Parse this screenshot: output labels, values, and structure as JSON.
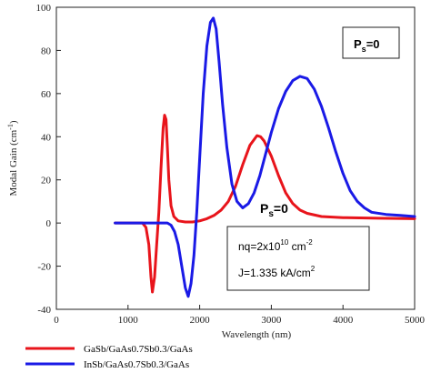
{
  "chart_data": {
    "type": "line",
    "xlabel": "Wavelength  (nm)",
    "ylabel": "Modal Gain  (cm⁻¹)",
    "xlim": [
      0,
      5000
    ],
    "ylim": [
      -40,
      100
    ],
    "x_ticks": [
      0,
      1000,
      2000,
      3000,
      4000,
      5000
    ],
    "y_ticks": [
      -40,
      -20,
      0,
      20,
      40,
      60,
      80,
      100
    ],
    "grid": false,
    "legend_position": "bottom-left",
    "series": [
      {
        "name": "GaSb/GaAs0.7Sb0.3/GaAs",
        "color": "#e8141b",
        "x": [
          820,
          1200,
          1250,
          1290,
          1320,
          1340,
          1370,
          1400,
          1430,
          1460,
          1490,
          1510,
          1530,
          1550,
          1570,
          1600,
          1640,
          1700,
          1800,
          1900,
          2000,
          2100,
          2200,
          2300,
          2400,
          2500,
          2600,
          2700,
          2800,
          2850,
          2900,
          3000,
          3100,
          3200,
          3300,
          3400,
          3500,
          3700,
          4000,
          4500,
          5000
        ],
        "y": [
          0,
          0,
          -2,
          -10,
          -25,
          -32,
          -25,
          -10,
          5,
          25,
          44,
          50,
          48,
          35,
          20,
          8,
          3,
          1,
          0.5,
          0.5,
          1,
          2,
          3.5,
          6,
          10,
          17,
          27,
          36,
          40.5,
          40,
          38,
          31,
          22,
          14,
          9,
          6,
          4.5,
          3,
          2.5,
          2.2,
          2
        ]
      },
      {
        "name": "InSb/GaAs0.7Sb0.3/GaAs",
        "color": "#1a1ae6",
        "x": [
          820,
          1550,
          1600,
          1650,
          1700,
          1750,
          1800,
          1840,
          1880,
          1920,
          1960,
          2000,
          2050,
          2100,
          2150,
          2190,
          2230,
          2270,
          2320,
          2380,
          2450,
          2520,
          2600,
          2680,
          2760,
          2840,
          2920,
          3000,
          3100,
          3200,
          3300,
          3400,
          3500,
          3600,
          3700,
          3800,
          3900,
          4000,
          4100,
          4200,
          4300,
          4400,
          4600,
          4800,
          5000
        ],
        "y": [
          0,
          0,
          -1,
          -4,
          -10,
          -20,
          -30,
          -34,
          -28,
          -15,
          5,
          30,
          60,
          82,
          93,
          95,
          90,
          75,
          55,
          35,
          18,
          10,
          7,
          9,
          14,
          22,
          32,
          42,
          53,
          61,
          66,
          68,
          67,
          62,
          54,
          44,
          33,
          23,
          15,
          10,
          7,
          5,
          4,
          3.5,
          3
        ]
      }
    ],
    "annotations": [
      {
        "text": "P",
        "sub": "s",
        "rest": "=0"
      },
      {
        "text": "P",
        "sub": "s",
        "rest": "=0"
      }
    ],
    "parameter_box": {
      "line1": "nq=2x10",
      "line1_exp": "10",
      "line1_unit": " cm",
      "line1_unit_exp": "-2",
      "line2": "J=1.335  kA/cm",
      "line2_exp": "2"
    }
  }
}
